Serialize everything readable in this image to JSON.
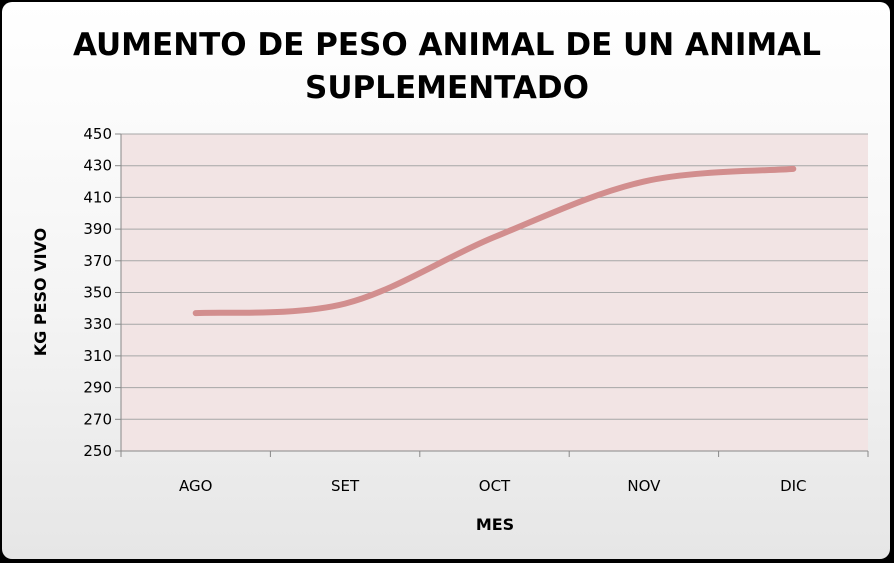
{
  "chart_data": {
    "type": "line",
    "title": [
      "AUMENTO DE PESO ANIMAL DE UN ANIMAL",
      "SUPLEMENTADO"
    ],
    "xlabel": "MES",
    "ylabel": "KG PESO VIVO",
    "categories": [
      "AGO",
      "SET",
      "OCT",
      "NOV",
      "DIC"
    ],
    "series": [
      {
        "values": [
          337,
          343,
          385,
          420,
          428
        ]
      }
    ],
    "ylim": [
      250,
      450
    ],
    "yticks": [
      "450",
      "430",
      "410",
      "390",
      "370",
      "350",
      "330",
      "310",
      "290",
      "270",
      "250"
    ],
    "grid": true,
    "smooth": true,
    "colors": {
      "line": "#d28e8e",
      "plot_bg": "#f2e4e4",
      "grid": "#a6a6a6"
    }
  }
}
